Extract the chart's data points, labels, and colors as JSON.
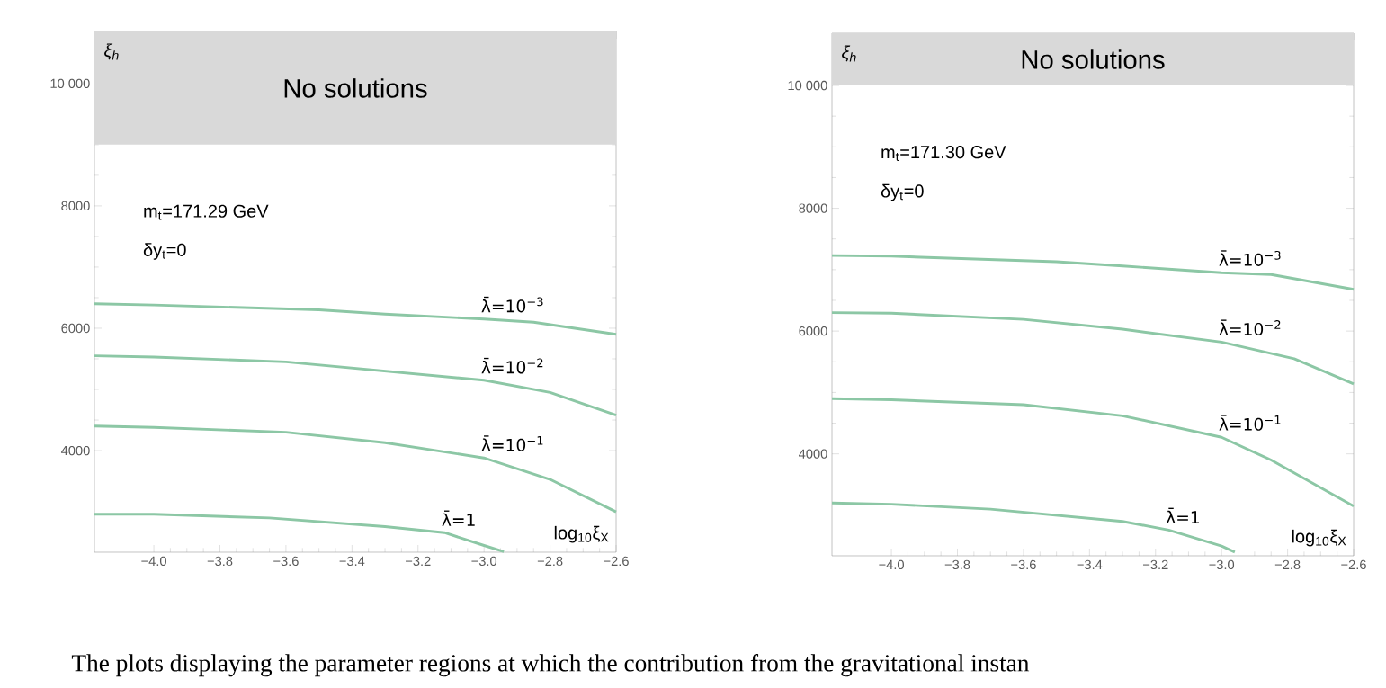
{
  "chart_data": [
    {
      "type": "line",
      "ylabel": "ξ$_{h}$",
      "xlabel": "log$_{10}$ξ$_{X}$",
      "xlim": [
        -4.18,
        -2.6
      ],
      "ylim": [
        2340,
        10850
      ],
      "xticks": [
        {
          "value": -4.0,
          "label": "−4.0"
        },
        {
          "value": -3.8,
          "label": "−3.8"
        },
        {
          "value": -3.6,
          "label": "−3.6"
        },
        {
          "value": -3.4,
          "label": "−3.4"
        },
        {
          "value": -3.2,
          "label": "−3.2"
        },
        {
          "value": -3.0,
          "label": "−3.0"
        },
        {
          "value": -2.8,
          "label": "−2.8"
        },
        {
          "value": -2.6,
          "label": "−2.6"
        }
      ],
      "yticks": [
        4000,
        6000,
        8000,
        {
          "value": 10000,
          "label": "10 000"
        }
      ],
      "bands": [
        {
          "axis": "y",
          "from": 9000,
          "to": 10850,
          "label": "No solutions",
          "color": "#d9d9d9"
        }
      ],
      "annotations": [
        "m$_{t}$=171.29 GeV",
        "δy$_{t}$=0"
      ],
      "grid": false,
      "legend": false,
      "marker": "none",
      "line_style": "solid",
      "series": [
        {
          "name": "λ̄=10$^{−3}$",
          "color": "#8cc7a5",
          "x": [
            -4.18,
            -4.0,
            -3.5,
            -3.3,
            -3.0,
            -2.85,
            -2.6
          ],
          "values": [
            6400,
            6380,
            6300,
            6230,
            6150,
            6100,
            5900
          ]
        },
        {
          "name": "λ̄=10$^{−2}$",
          "color": "#8cc7a5",
          "x": [
            -4.18,
            -4.0,
            -3.6,
            -3.0,
            -2.8,
            -2.6
          ],
          "values": [
            5550,
            5530,
            5450,
            5150,
            4950,
            4580
          ]
        },
        {
          "name": "λ̄=10$^{−1}$",
          "color": "#8cc7a5",
          "x": [
            -4.18,
            -4.0,
            -3.6,
            -3.3,
            -3.0,
            -2.8,
            -2.6
          ],
          "values": [
            4400,
            4380,
            4300,
            4130,
            3880,
            3530,
            3000
          ]
        },
        {
          "name": "λ̄=1",
          "color": "#8cc7a5",
          "x": [
            -4.18,
            -4.0,
            -3.65,
            -3.3,
            -3.12,
            -3.0,
            -2.94
          ],
          "values": [
            2960,
            2960,
            2900,
            2760,
            2660,
            2450,
            2350
          ]
        }
      ]
    },
    {
      "type": "line",
      "ylabel": "ξ$_{h}$",
      "xlabel": "log$_{10}$ξ$_{X}$",
      "xlim": [
        -4.18,
        -2.6
      ],
      "ylim": [
        2340,
        10850
      ],
      "xticks": [
        {
          "value": -4.0,
          "label": "−4.0"
        },
        {
          "value": -3.8,
          "label": "−3.8"
        },
        {
          "value": -3.6,
          "label": "−3.6"
        },
        {
          "value": -3.4,
          "label": "−3.4"
        },
        {
          "value": -3.2,
          "label": "−3.2"
        },
        {
          "value": -3.0,
          "label": "−3.0"
        },
        {
          "value": -2.8,
          "label": "−2.8"
        },
        {
          "value": -2.6,
          "label": "−2.6"
        }
      ],
      "yticks": [
        4000,
        6000,
        8000,
        {
          "value": 10000,
          "label": "10 000"
        }
      ],
      "bands": [
        {
          "axis": "y",
          "from": 10000,
          "to": 10850,
          "label": "No solutions",
          "color": "#d9d9d9"
        }
      ],
      "annotations": [
        "m$_{t}$=171.30 GeV",
        "δy$_{t}$=0"
      ],
      "grid": false,
      "legend": false,
      "marker": "none",
      "line_style": "solid",
      "series": [
        {
          "name": "λ̄=10$^{−3}$",
          "color": "#8cc7a5",
          "x": [
            -4.18,
            -4.0,
            -3.5,
            -3.3,
            -3.0,
            -2.85,
            -2.6
          ],
          "values": [
            7230,
            7220,
            7130,
            7060,
            6950,
            6920,
            6680
          ]
        },
        {
          "name": "λ̄=10$^{−2}$",
          "color": "#8cc7a5",
          "x": [
            -4.18,
            -4.0,
            -3.6,
            -3.3,
            -3.0,
            -2.78,
            -2.6
          ],
          "values": [
            6300,
            6290,
            6190,
            6030,
            5820,
            5550,
            5140
          ]
        },
        {
          "name": "λ̄=10$^{−1}$",
          "color": "#8cc7a5",
          "x": [
            -4.18,
            -4.0,
            -3.6,
            -3.3,
            -3.0,
            -2.85,
            -2.6
          ],
          "values": [
            4900,
            4880,
            4800,
            4620,
            4270,
            3900,
            3150
          ]
        },
        {
          "name": "λ̄=1",
          "color": "#8cc7a5",
          "x": [
            -4.18,
            -4.0,
            -3.7,
            -3.6,
            -3.3,
            -3.16,
            -3.0,
            -2.96
          ],
          "values": [
            3200,
            3180,
            3100,
            3050,
            2900,
            2760,
            2500,
            2400
          ]
        }
      ]
    },
    {
      "type": "other",
      "annotations": [
        "The plots displaying the parameter regions at which the contribution from the gravitational instan"
      ]
    }
  ]
}
